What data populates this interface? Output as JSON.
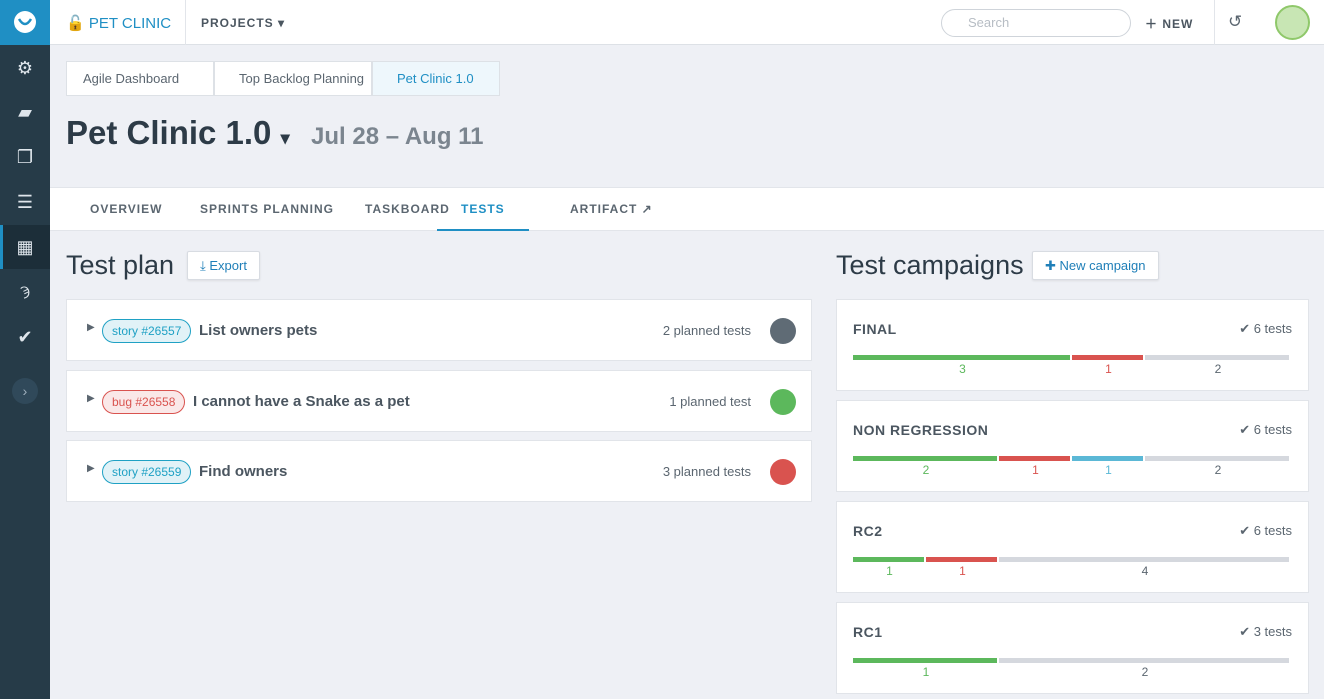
{
  "topbar": {
    "project": "PET CLINIC",
    "projects_menu": "PROJECTS",
    "search_placeholder": "Search",
    "new_button": "NEW"
  },
  "breadcrumbs": [
    "Agile Dashboard",
    "Top Backlog Planning",
    "Pet Clinic 1.0"
  ],
  "header": {
    "title": "Pet Clinic 1.0",
    "dates": "Jul 28 – Aug 11"
  },
  "tabs": {
    "items": [
      "OVERVIEW",
      "SPRINTS PLANNING",
      "TASKBOARD",
      "TESTS",
      "ARTIFACT"
    ],
    "active": 3
  },
  "test_plan": {
    "title": "Test plan",
    "export": "Export",
    "items": [
      {
        "badge": "story #26557",
        "badge_color": "#1fa1c4",
        "title": "List owners pets",
        "planned": "2 planned tests",
        "status_color": "#5f6b75"
      },
      {
        "badge": "bug #26558",
        "badge_color": "#d9534f",
        "title": "I cannot have a Snake as a pet",
        "planned": "1 planned test",
        "status_color": "#5cb85c"
      },
      {
        "badge": "story #26559",
        "badge_color": "#1fa1c4",
        "title": "Find owners",
        "planned": "3 planned tests",
        "status_color": "#d9534f"
      }
    ]
  },
  "campaigns": {
    "title": "Test campaigns",
    "new_button": "New campaign",
    "items": [
      {
        "name": "FINAL",
        "tests": "6 tests",
        "segments": [
          {
            "value": 3,
            "color": "#5cb85c"
          },
          {
            "value": 1,
            "color": "#d9534f"
          },
          {
            "value": 2,
            "color": "#d5d8de"
          }
        ]
      },
      {
        "name": "NON REGRESSION",
        "tests": "6 tests",
        "segments": [
          {
            "value": 2,
            "color": "#5cb85c"
          },
          {
            "value": 1,
            "color": "#d9534f"
          },
          {
            "value": 1,
            "color": "#5bb8d6"
          },
          {
            "value": 2,
            "color": "#d5d8de"
          }
        ]
      },
      {
        "name": "RC2",
        "tests": "6 tests",
        "segments": [
          {
            "value": 1,
            "color": "#5cb85c"
          },
          {
            "value": 1,
            "color": "#d9534f"
          },
          {
            "value": 4,
            "color": "#d5d8de"
          }
        ]
      },
      {
        "name": "RC1",
        "tests": "3 tests",
        "segments": [
          {
            "value": 1,
            "color": "#5cb85c"
          },
          {
            "value": 2,
            "color": "#d5d8de"
          }
        ]
      }
    ]
  }
}
